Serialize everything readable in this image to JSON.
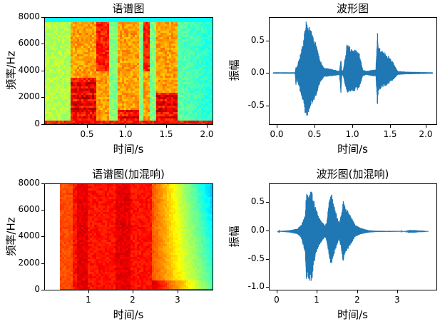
{
  "chart_data": [
    {
      "id": "spectrogram",
      "type": "heatmap",
      "title": "语谱图",
      "xlabel": "时间/s",
      "ylabel": "频率/Hz",
      "xlim": [
        0.0,
        2.05
      ],
      "ylim": [
        0,
        8000
      ],
      "xticks": [
        "0.5",
        "1.0",
        "1.5",
        "2.0"
      ],
      "yticks": [
        "0",
        "2000",
        "4000",
        "6000",
        "8000"
      ],
      "colormap": "jet",
      "grid": false,
      "description": "Clean speech spectrogram with three voiced segments around 0.3-0.8 s, 0.85-1.3 s and 1.35-1.6 s; strong harmonic energy below 3000 Hz, low-energy background elsewhere",
      "segments": [
        {
          "start": 0.3,
          "end": 0.62,
          "peak_band_hz": [
            0,
            3500
          ]
        },
        {
          "start": 0.62,
          "end": 0.78,
          "peak_band_hz": [
            4000,
            8000
          ]
        },
        {
          "start": 0.88,
          "end": 1.15,
          "peak_band_hz": [
            0,
            1200
          ]
        },
        {
          "start": 1.18,
          "end": 1.28,
          "peak_band_hz": [
            4000,
            8000
          ]
        },
        {
          "start": 1.35,
          "end": 1.6,
          "peak_band_hz": [
            0,
            2500
          ]
        }
      ]
    },
    {
      "id": "waveform",
      "type": "line",
      "title": "波形图",
      "xlabel": "时间/s",
      "ylabel": "振幅",
      "xlim": [
        -0.05,
        2.1
      ],
      "ylim": [
        -0.78,
        0.84
      ],
      "xticks": [
        "0.0",
        "0.5",
        "1.0",
        "1.5",
        "2.0"
      ],
      "yticks": [
        "-0.5",
        "0.0",
        "0.5"
      ],
      "color": "#1f77b4",
      "grid": false,
      "envelope": {
        "t": [
          0.0,
          0.28,
          0.29,
          0.3,
          0.37,
          0.42,
          0.47,
          0.55,
          0.6,
          0.65,
          0.75,
          0.85,
          0.87,
          0.88,
          0.9,
          0.95,
          1.0,
          1.05,
          1.1,
          1.15,
          1.2,
          1.28,
          1.32,
          1.34,
          1.35,
          1.4,
          1.45,
          1.5,
          1.55,
          1.6,
          1.7,
          2.05
        ],
        "upper": [
          0.01,
          0.01,
          0.1,
          0.08,
          0.4,
          0.79,
          0.7,
          0.45,
          0.2,
          0.08,
          0.06,
          0.03,
          0.22,
          0.03,
          0.05,
          0.47,
          0.38,
          0.35,
          0.35,
          0.05,
          0.03,
          0.05,
          0.05,
          0.66,
          0.4,
          0.35,
          0.3,
          0.25,
          0.15,
          0.03,
          0.02,
          0.01
        ],
        "lower": [
          -0.01,
          -0.01,
          -0.22,
          -0.08,
          -0.4,
          -0.71,
          -0.55,
          -0.35,
          -0.15,
          -0.06,
          -0.05,
          -0.03,
          -0.32,
          -0.03,
          -0.05,
          -0.33,
          -0.28,
          -0.28,
          -0.25,
          -0.05,
          -0.03,
          -0.05,
          -0.05,
          -0.55,
          -0.28,
          -0.22,
          -0.2,
          -0.15,
          -0.1,
          -0.03,
          -0.02,
          -0.01
        ]
      }
    },
    {
      "id": "spectrogram_reverb",
      "type": "heatmap",
      "title": "语谱图(加混响)",
      "xlabel": "时间/s",
      "ylabel": "频率/Hz",
      "xlim": [
        0.0,
        3.8
      ],
      "ylim": [
        0,
        8000
      ],
      "xticks": [
        "1",
        "2",
        "3"
      ],
      "yticks": [
        "0",
        "2000",
        "4000",
        "6000",
        "8000"
      ],
      "colormap": "jet",
      "grid": false,
      "description": "Reverberant speech spectrogram starting at ~0.3 s; strong red energy from 0.3 to 2.4 s, gradually decaying to yellow/green toward 3.8 s; blank before 0.3 s"
    },
    {
      "id": "waveform_reverb",
      "type": "line",
      "title": "波形图(加混响)",
      "xlabel": "时间/s",
      "ylabel": "振幅",
      "xlim": [
        -0.2,
        4.0
      ],
      "ylim": [
        -1.05,
        0.85
      ],
      "xticks": [
        "0",
        "1",
        "2",
        "3"
      ],
      "yticks": [
        "-1.0",
        "-0.5",
        "0.0",
        "0.5"
      ],
      "color": "#1f77b4",
      "grid": false,
      "envelope": {
        "t": [
          0.0,
          0.3,
          0.5,
          0.6,
          0.7,
          0.72,
          0.8,
          0.85,
          0.95,
          1.05,
          1.2,
          1.25,
          1.3,
          1.35,
          1.45,
          1.55,
          1.6,
          1.65,
          1.7,
          1.8,
          1.95,
          2.1,
          2.3,
          2.5,
          3.8
        ],
        "upper": [
          0.0,
          0.02,
          0.05,
          0.12,
          0.3,
          0.68,
          0.7,
          0.75,
          0.45,
          0.25,
          0.1,
          0.22,
          0.6,
          0.74,
          0.4,
          0.15,
          0.3,
          0.56,
          0.45,
          0.35,
          0.12,
          0.06,
          0.02,
          0.01,
          0.0
        ],
        "lower": [
          0.0,
          -0.02,
          -0.05,
          -0.12,
          -0.4,
          -0.9,
          -0.9,
          -0.97,
          -0.45,
          -0.25,
          -0.1,
          -0.22,
          -0.45,
          -0.62,
          -0.35,
          -0.15,
          -0.3,
          -0.56,
          -0.4,
          -0.3,
          -0.1,
          -0.05,
          -0.02,
          -0.01,
          0.0
        ]
      }
    }
  ]
}
